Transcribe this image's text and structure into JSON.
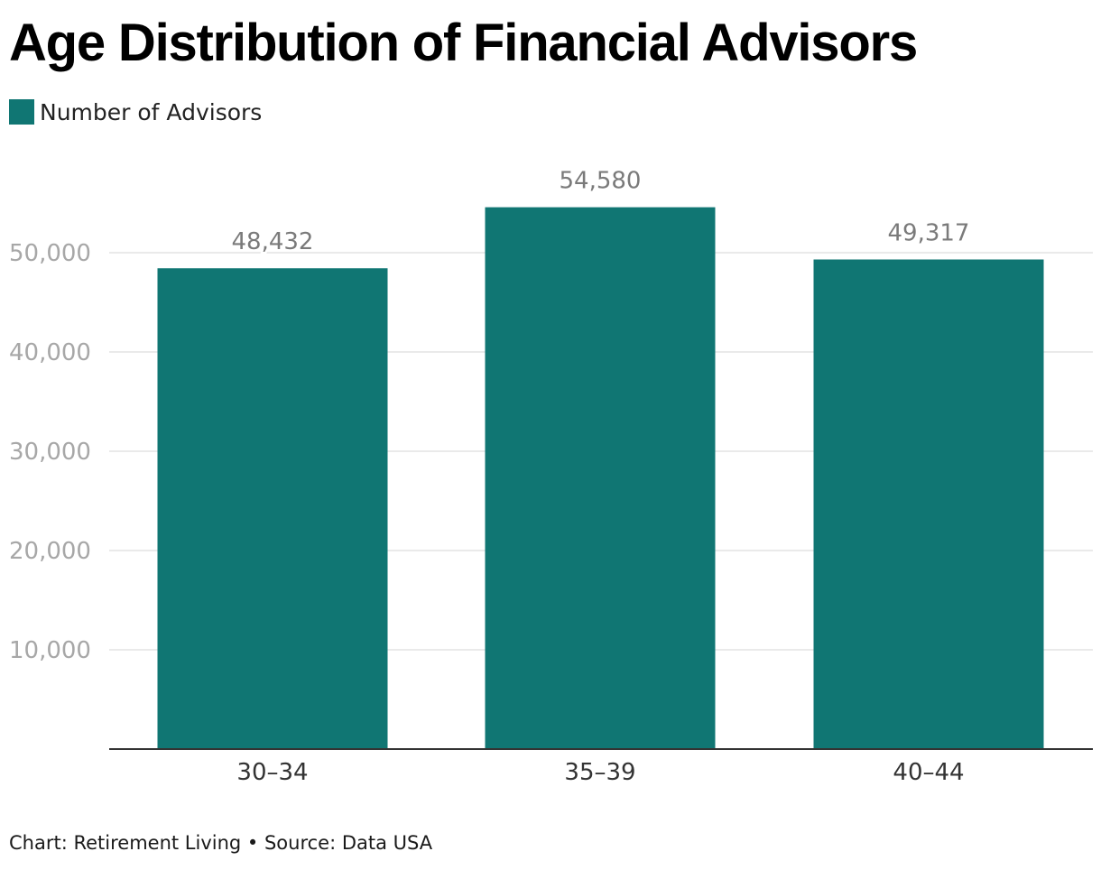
{
  "chart_data": {
    "type": "bar",
    "title": "Age Distribution of Financial Advisors",
    "categories": [
      "30–34",
      "35–39",
      "40–44"
    ],
    "series": [
      {
        "name": "Number of Advisors",
        "values": [
          48432,
          54580,
          49317
        ],
        "value_labels": [
          "48,432",
          "54,580",
          "49,317"
        ]
      }
    ],
    "xlabel": "",
    "ylabel": "",
    "ylim": [
      0,
      55000
    ],
    "yticks": [
      10000,
      20000,
      30000,
      40000,
      50000
    ],
    "ytick_labels": [
      "10,000",
      "20,000",
      "30,000",
      "40,000",
      "50,000"
    ],
    "grid": true,
    "legend_position": "top-left"
  },
  "colors": {
    "bar": "#107673",
    "gridline": "#e4e4e4",
    "tick_label": "#a7a7a7",
    "value_label": "#7a7a7a",
    "axis": "#333333",
    "category_label": "#333333"
  },
  "footer": {
    "note": "Chart: Retirement Living • Source: Data USA"
  }
}
